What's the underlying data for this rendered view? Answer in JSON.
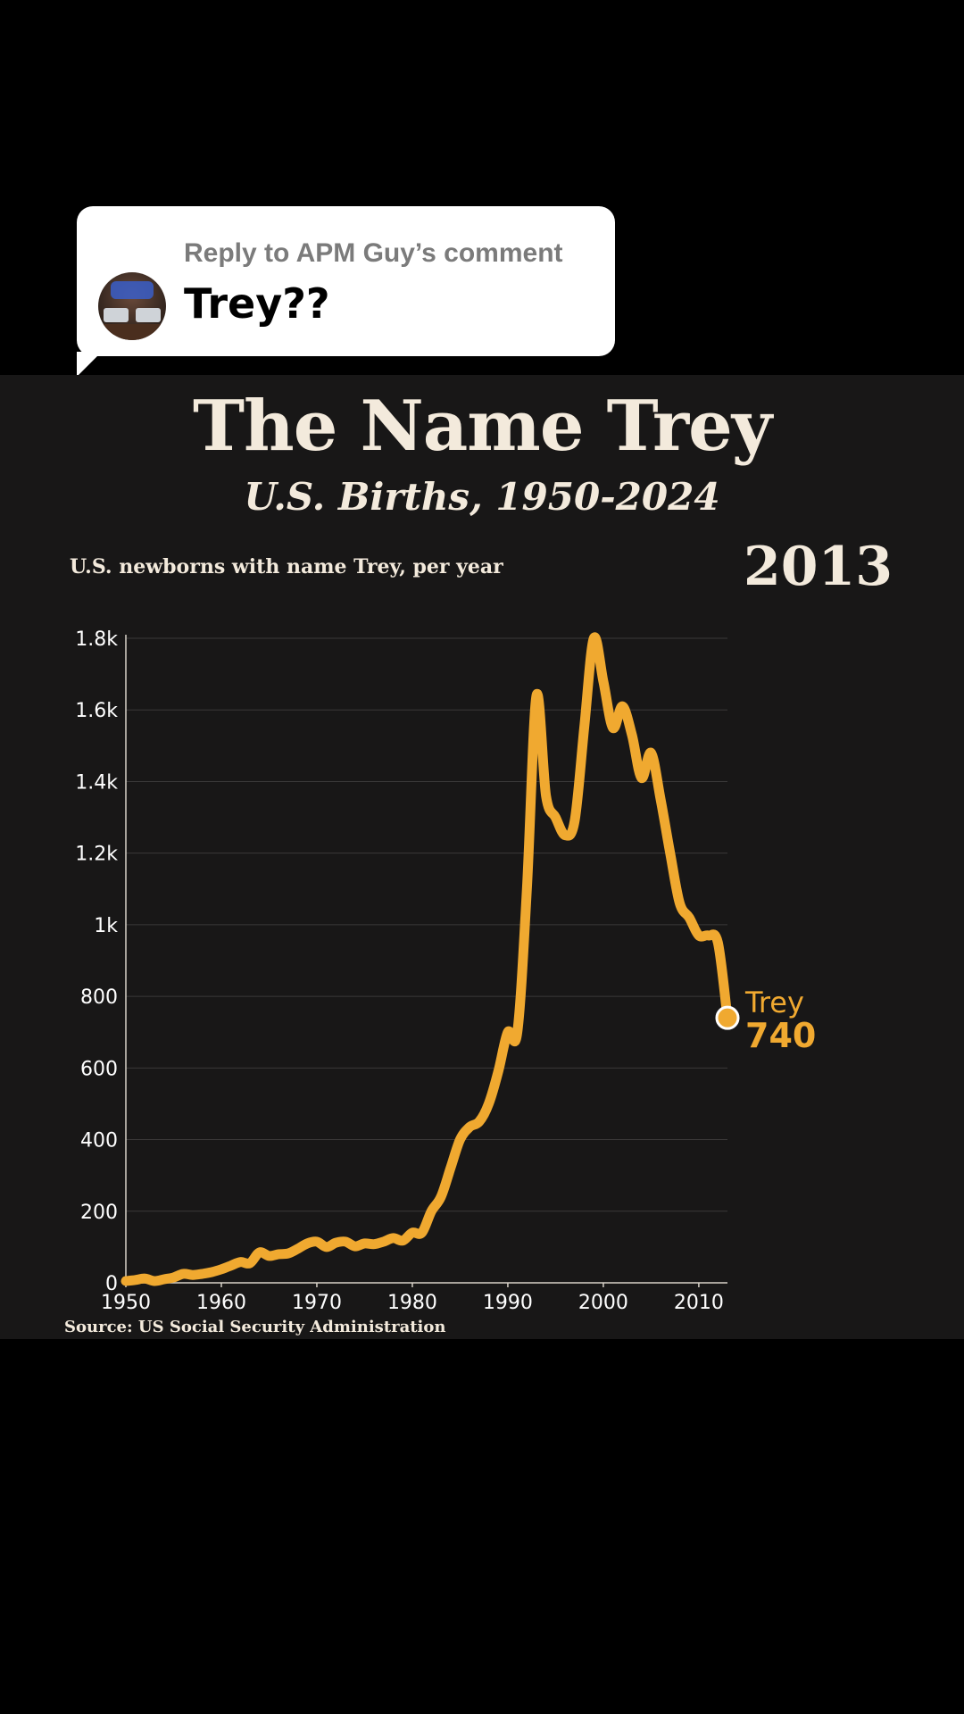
{
  "reply": {
    "heading": "Reply to APM Guy’s comment",
    "text": "Trey??"
  },
  "chart_data": {
    "type": "line",
    "title": "The Name Trey",
    "subtitle": "U.S. Births, 1950-2024",
    "ylabel": "U.S. newborns with name Trey, per year",
    "current_year": "2013",
    "source": "Source: US Social Security Administration",
    "xlim": [
      1950,
      2013
    ],
    "ylim": [
      0,
      1800
    ],
    "x_ticks": [
      1950,
      1960,
      1970,
      1980,
      1990,
      2000,
      2010
    ],
    "y_ticks": [
      {
        "value": 0,
        "label": "0"
      },
      {
        "value": 200,
        "label": "200"
      },
      {
        "value": 400,
        "label": "400"
      },
      {
        "value": 600,
        "label": "600"
      },
      {
        "value": 800,
        "label": "800"
      },
      {
        "value": 1000,
        "label": "1k"
      },
      {
        "value": 1200,
        "label": "1.2k"
      },
      {
        "value": 1400,
        "label": "1.4k"
      },
      {
        "value": 1600,
        "label": "1.6k"
      },
      {
        "value": 1800,
        "label": "1.8k"
      }
    ],
    "grid": true,
    "series": [
      {
        "name": "Trey",
        "color": "#f0a930",
        "end_label": "740",
        "x": [
          1950,
          1951,
          1952,
          1953,
          1954,
          1955,
          1956,
          1957,
          1958,
          1959,
          1960,
          1961,
          1962,
          1963,
          1964,
          1965,
          1966,
          1967,
          1968,
          1969,
          1970,
          1971,
          1972,
          1973,
          1974,
          1975,
          1976,
          1977,
          1978,
          1979,
          1980,
          1981,
          1982,
          1983,
          1984,
          1985,
          1986,
          1987,
          1988,
          1989,
          1990,
          1991,
          1992,
          1993,
          1994,
          1995,
          1996,
          1997,
          1998,
          1999,
          2000,
          2001,
          2002,
          2003,
          2004,
          2005,
          2006,
          2007,
          2008,
          2009,
          2010,
          2011,
          2012,
          2013
        ],
        "y": [
          5,
          8,
          12,
          5,
          10,
          15,
          25,
          22,
          25,
          30,
          38,
          48,
          58,
          55,
          85,
          75,
          80,
          82,
          95,
          110,
          115,
          100,
          112,
          115,
          102,
          110,
          108,
          115,
          125,
          118,
          140,
          140,
          200,
          240,
          320,
          400,
          435,
          450,
          500,
          590,
          700,
          700,
          1100,
          1640,
          1360,
          1300,
          1250,
          1290,
          1550,
          1800,
          1680,
          1550,
          1610,
          1530,
          1410,
          1480,
          1350,
          1200,
          1060,
          1020,
          970,
          970,
          950,
          740
        ]
      }
    ]
  }
}
